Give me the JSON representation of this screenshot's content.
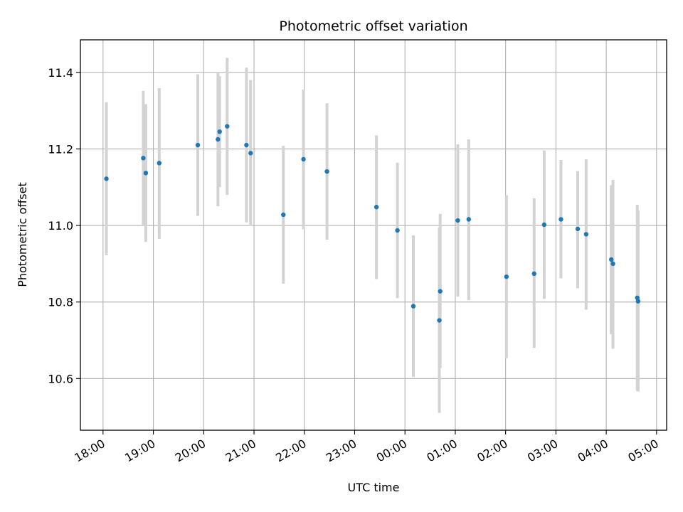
{
  "chart_data": {
    "type": "scatter",
    "title": "Photometric offset variation",
    "xlabel": "UTC time",
    "ylabel": "Photometric offset",
    "grid": true,
    "x_ticks": [
      "18:00",
      "19:00",
      "20:00",
      "21:00",
      "22:00",
      "23:00",
      "00:00",
      "01:00",
      "02:00",
      "03:00",
      "04:00",
      "05:00"
    ],
    "xlim": [
      "17:33",
      "05:12"
    ],
    "y_ticks": [
      "10.6",
      "10.8",
      "11.0",
      "11.2",
      "11.4"
    ],
    "ylim": [
      10.465,
      11.485
    ],
    "colors": {
      "points": "#1f77b4",
      "error_bars": "#d3d3d3",
      "grid": "#b0b0b0"
    },
    "series": [
      {
        "error_bar": "vertical",
        "points": [
          {
            "time": "18:04",
            "y": 11.122,
            "lo": 10.922,
            "hi": 11.322
          },
          {
            "time": "18:48",
            "y": 11.176,
            "lo": 11.0,
            "hi": 11.352
          },
          {
            "time": "18:51",
            "y": 11.137,
            "lo": 10.957,
            "hi": 11.317
          },
          {
            "time": "19:07",
            "y": 11.163,
            "lo": 10.965,
            "hi": 11.359
          },
          {
            "time": "19:53",
            "y": 11.21,
            "lo": 11.025,
            "hi": 11.395
          },
          {
            "time": "20:17",
            "y": 11.225,
            "lo": 11.05,
            "hi": 11.398
          },
          {
            "time": "20:19",
            "y": 11.245,
            "lo": 11.1,
            "hi": 11.39
          },
          {
            "time": "20:28",
            "y": 11.259,
            "lo": 11.08,
            "hi": 11.438
          },
          {
            "time": "20:51",
            "y": 11.21,
            "lo": 11.008,
            "hi": 11.412
          },
          {
            "time": "20:56",
            "y": 11.189,
            "lo": 10.999,
            "hi": 11.38
          },
          {
            "time": "21:35",
            "y": 11.028,
            "lo": 10.848,
            "hi": 11.208
          },
          {
            "time": "21:59",
            "y": 11.173,
            "lo": 10.99,
            "hi": 11.355
          },
          {
            "time": "22:27",
            "y": 11.141,
            "lo": 10.963,
            "hi": 11.319
          },
          {
            "time": "23:26",
            "y": 11.048,
            "lo": 10.86,
            "hi": 11.235
          },
          {
            "time": "23:51",
            "y": 10.987,
            "lo": 10.81,
            "hi": 11.164
          },
          {
            "time": "00:10",
            "y": 10.789,
            "lo": 10.604,
            "hi": 10.974
          },
          {
            "time": "00:41",
            "y": 10.752,
            "lo": 10.51,
            "hi": 10.994
          },
          {
            "time": "00:42",
            "y": 10.828,
            "lo": 10.628,
            "hi": 11.03
          },
          {
            "time": "01:03",
            "y": 11.013,
            "lo": 10.814,
            "hi": 11.212
          },
          {
            "time": "01:16",
            "y": 11.016,
            "lo": 10.805,
            "hi": 11.225
          },
          {
            "time": "02:01",
            "y": 10.866,
            "lo": 10.653,
            "hi": 11.079
          },
          {
            "time": "02:34",
            "y": 10.874,
            "lo": 10.68,
            "hi": 11.071
          },
          {
            "time": "02:46",
            "y": 11.002,
            "lo": 10.808,
            "hi": 11.196
          },
          {
            "time": "03:06",
            "y": 11.016,
            "lo": 10.862,
            "hi": 11.171
          },
          {
            "time": "03:26",
            "y": 10.991,
            "lo": 10.836,
            "hi": 11.142
          },
          {
            "time": "03:36",
            "y": 10.977,
            "lo": 10.78,
            "hi": 11.173
          },
          {
            "time": "04:06",
            "y": 10.911,
            "lo": 10.716,
            "hi": 11.105
          },
          {
            "time": "04:08",
            "y": 10.9,
            "lo": 10.678,
            "hi": 11.119
          },
          {
            "time": "04:37",
            "y": 10.811,
            "lo": 10.568,
            "hi": 11.054
          },
          {
            "time": "04:38",
            "y": 10.802,
            "lo": 10.566,
            "hi": 11.039
          }
        ]
      }
    ]
  }
}
